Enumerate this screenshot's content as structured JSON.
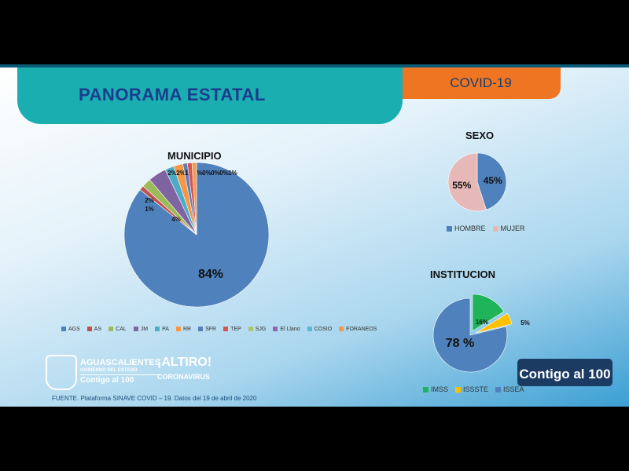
{
  "header": {
    "title": "PANORAMA ESTATAL",
    "tag": "COVID-19"
  },
  "source": "FUENTE. Plataforma SINAVE COVID – 19. Datos del 19 de abril de 2020",
  "logos": {
    "state": "AGUASCALIENTES",
    "state_sub": "GOBIERNO DEL ESTADO",
    "slogan": "Contigo al 100",
    "campaign": "¡ALTIRO!",
    "campaign_sub": "CORONAVIRUS",
    "badge": "Contigo al 100"
  },
  "chart_data": [
    {
      "type": "pie",
      "title": "MUNICIPIO",
      "legend": "bottom",
      "categories": [
        "AGS",
        "AS",
        "CAL",
        "JM",
        "PA",
        "RR",
        "SFR",
        "TEP",
        "SJG",
        "El Llano",
        "COSIO",
        "FORANEOS"
      ],
      "values": [
        84,
        1,
        2,
        4,
        2,
        2,
        1,
        1,
        0,
        0,
        0,
        1
      ],
      "labels": [
        "84%",
        "1%",
        "2%",
        "4%",
        "2%",
        "2%",
        "1%",
        "1%",
        "0%",
        "0%",
        "0%",
        "1%"
      ],
      "colors": [
        "#4f81bd",
        "#c0504d",
        "#9bbb59",
        "#8064a2",
        "#4bacc6",
        "#f79646",
        "#5b7fb8",
        "#d9534f",
        "#a8c66c",
        "#8e6bb0",
        "#5cb7cf",
        "#f59a4c"
      ]
    },
    {
      "type": "pie",
      "title": "SEXO",
      "legend": "bottom",
      "categories": [
        "HOMBRE",
        "MUJER"
      ],
      "values": [
        45,
        55
      ],
      "labels": [
        "45%",
        "55%"
      ],
      "colors": [
        "#4f81bd",
        "#e6b9b8"
      ]
    },
    {
      "type": "pie",
      "title": "INSTITUCION",
      "legend": "bottom",
      "categories": [
        "IMSS",
        "ISSSTE",
        "ISSEA"
      ],
      "values": [
        16,
        5,
        78
      ],
      "labels": [
        "16%",
        "5%",
        "78 %"
      ],
      "colors": [
        "#1fb45a",
        "#ffc000",
        "#4f81bd"
      ]
    }
  ]
}
